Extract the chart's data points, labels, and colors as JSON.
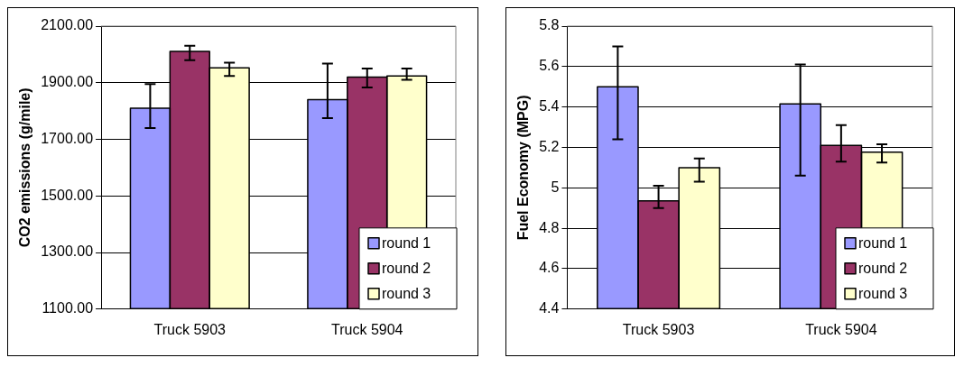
{
  "chart_data": [
    {
      "type": "bar",
      "ylabel": "CO2 emissions (g/mile)",
      "categories": [
        "Truck 5903",
        "Truck 5904"
      ],
      "series": [
        {
          "name": "round 1",
          "color": "#9999ff",
          "values": [
            1810,
            1840
          ],
          "errors": [
            [
              1740,
              1895
            ],
            [
              1775,
              1968
            ]
          ]
        },
        {
          "name": "round 2",
          "color": "#993366",
          "values": [
            2011,
            1920
          ],
          "errors": [
            [
              1980,
              2031
            ],
            [
              1883,
              1950
            ]
          ]
        },
        {
          "name": "round 3",
          "color": "#ffffcc",
          "values": [
            1953,
            1924
          ],
          "errors": [
            [
              1924,
              1971
            ],
            [
              1910,
              1950
            ]
          ]
        }
      ],
      "ylim": [
        1100,
        2100
      ],
      "yticks": [
        {
          "value": 1100,
          "label": "1100.00"
        },
        {
          "value": 1300,
          "label": "1300.00"
        },
        {
          "value": 1500,
          "label": "1500.00"
        },
        {
          "value": 1700,
          "label": "1700.00"
        },
        {
          "value": 1900,
          "label": "1900.00"
        },
        {
          "value": 2100,
          "label": "2100.00"
        }
      ],
      "grid": "y",
      "legend": "bottom right"
    },
    {
      "type": "bar",
      "ylabel": "Fuel Economy (MPG)",
      "categories": [
        "Truck 5903",
        "Truck 5904"
      ],
      "series": [
        {
          "name": "round 1",
          "color": "#9999ff",
          "values": [
            5.5,
            5.415
          ],
          "errors": [
            [
              5.24,
              5.7
            ],
            [
              5.06,
              5.61
            ]
          ]
        },
        {
          "name": "round 2",
          "color": "#993366",
          "values": [
            4.936,
            5.21
          ],
          "errors": [
            [
              4.9,
              5.01
            ],
            [
              5.13,
              5.31
            ]
          ]
        },
        {
          "name": "round 3",
          "color": "#ffffcc",
          "values": [
            5.1,
            5.177
          ],
          "errors": [
            [
              5.03,
              5.145
            ],
            [
              5.125,
              5.215
            ]
          ]
        }
      ],
      "ylim": [
        4.4,
        5.8
      ],
      "yticks": [
        4.4,
        4.6,
        4.8,
        5,
        5.2,
        5.4,
        5.6,
        5.8
      ],
      "grid": "y",
      "legend": "bottom right"
    }
  ]
}
